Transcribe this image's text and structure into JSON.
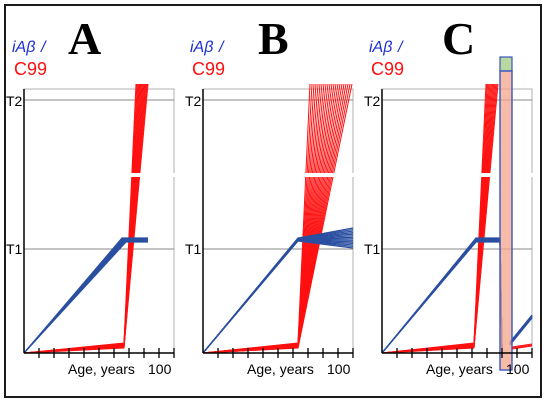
{
  "figure": {
    "panels": [
      {
        "letter": "A",
        "ylabel_iab": "iAβ",
        "ylabel_slash": "/",
        "ylabel_c99": "C99",
        "t2": "T2",
        "t1": "T1",
        "xlabel": "Age, years",
        "xmax": "100"
      },
      {
        "letter": "B",
        "ylabel_iab": "iAβ",
        "ylabel_slash": "/",
        "ylabel_c99": "C99",
        "t2": "T2",
        "t1": "T1",
        "xlabel": "Age, years",
        "xmax": "100"
      },
      {
        "letter": "C",
        "ylabel_iab": "iAβ",
        "ylabel_slash": "/",
        "ylabel_c99": "C99",
        "t2": "T2",
        "t1": "T1",
        "xlabel": "Age, years",
        "xmax": "100"
      }
    ],
    "colors": {
      "iab": "#2b4fa0",
      "c99": "#ff1010",
      "label_blue": "#1a2fd0",
      "intervention_fill": "#f4a58a",
      "intervention_stroke": "#3a55c0",
      "intervention_top": "#b8d8a0"
    }
  }
}
